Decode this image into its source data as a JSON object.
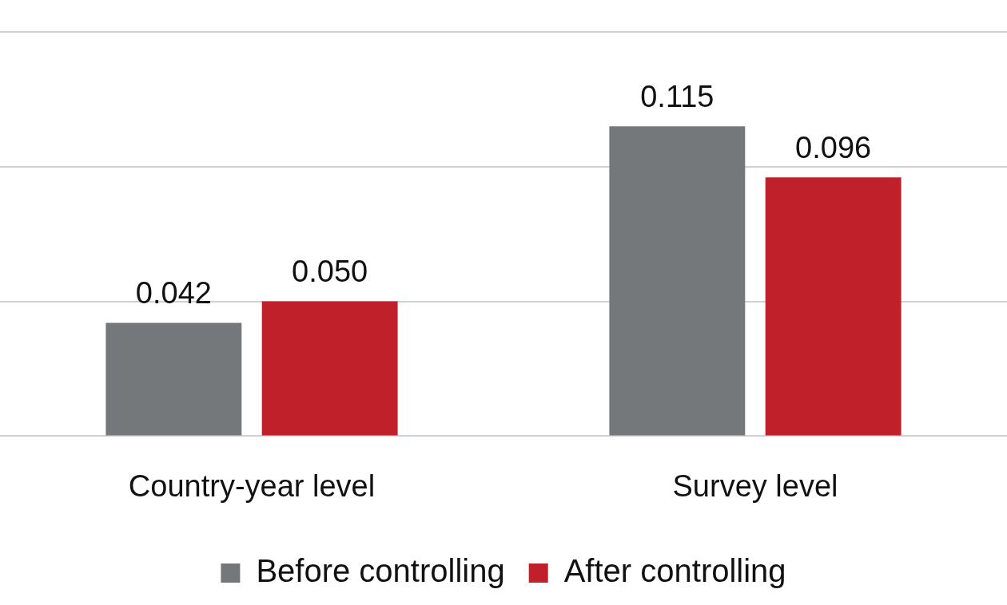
{
  "chart_data": {
    "type": "bar",
    "categories": [
      "Country-year level",
      "Survey level"
    ],
    "series": [
      {
        "name": "Before controlling",
        "color": "#75787b",
        "values": [
          0.042,
          0.115
        ],
        "value_labels": [
          "0.042",
          "0.115"
        ]
      },
      {
        "name": "After controlling",
        "color": "#c0202a",
        "values": [
          0.05,
          0.096
        ],
        "value_labels": [
          "0.050",
          "0.096"
        ]
      }
    ],
    "ylim": [
      0,
      0.15
    ],
    "yticks": [
      0,
      0.05,
      0.1,
      0.15
    ],
    "grid": true,
    "legend": "bottom",
    "data_labels": true,
    "tick_labels": "x"
  }
}
